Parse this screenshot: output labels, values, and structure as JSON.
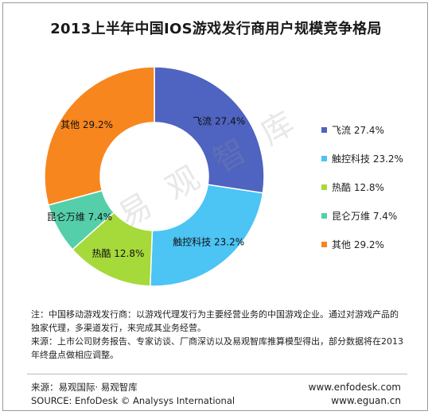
{
  "chart_data": {
    "type": "pie",
    "title": "2013上半年中国IOS游戏发行商用户规模竞争格局",
    "series": [
      {
        "name": "飞流",
        "value": 27.4,
        "label": "27.4%",
        "color": "#4f63c0"
      },
      {
        "name": "触控科技",
        "value": 23.2,
        "label": "23.2%",
        "color": "#4cc4f4"
      },
      {
        "name": "热酷",
        "value": 12.8,
        "label": "12.8%",
        "color": "#a6d93a"
      },
      {
        "name": "昆仑万维",
        "value": 7.4,
        "label": "7.4%",
        "color": "#55cfa9"
      },
      {
        "name": "其他",
        "value": 29.2,
        "label": "29.2%",
        "color": "#f7861e"
      }
    ],
    "legend_position": "right"
  },
  "watermark": "易 观 智 库",
  "notes": [
    "注：中国移动游戏发行商：以游戏代理发行为主要经营业务的中国游戏企业。通过对游戏产品的独家代理，多渠道发行，来完成其业务经营。",
    "来源：上市公司财务报告、专家访谈、厂商深访以及易观智库推算模型得出，部分数据将在2013年终盘点做相应调整。"
  ],
  "footer": {
    "source_cn": "来源：易观国际· 易观智库",
    "source_en": "SOURCE: EnfoDesk © Analysys International",
    "url1": "www.enfodesk.com",
    "url2": "www.eguan.cn"
  }
}
